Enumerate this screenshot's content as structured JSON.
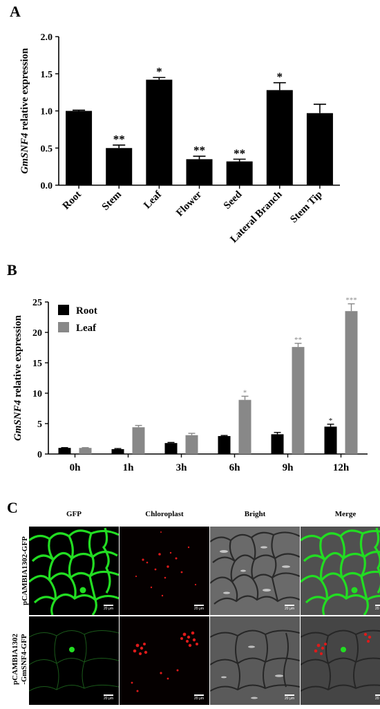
{
  "panels": {
    "a_label": "A",
    "b_label": "B",
    "c_label": "C"
  },
  "chart_data": [
    {
      "type": "bar",
      "panel": "A",
      "categories": [
        "Root",
        "Stem",
        "Leaf",
        "Flower",
        "Seed",
        "Lateral Branch",
        "Stem Tip"
      ],
      "values": [
        1.0,
        0.5,
        1.42,
        0.35,
        0.32,
        1.28,
        0.97
      ],
      "errors": [
        0.01,
        0.04,
        0.03,
        0.04,
        0.03,
        0.1,
        0.12
      ],
      "significance": [
        "",
        "**",
        "*",
        "**",
        "**",
        "*",
        ""
      ],
      "ylabel_gene": "GmSNF4",
      "ylabel_rest": " relative expression",
      "ylim": [
        0,
        2.0
      ],
      "yticks": [
        "0.0",
        "0.5",
        "1.0",
        "1.5",
        "2.0"
      ],
      "bar_color": "#000000"
    },
    {
      "type": "bar",
      "panel": "B",
      "categories": [
        "0h",
        "1h",
        "3h",
        "6h",
        "9h",
        "12h"
      ],
      "series": [
        {
          "name": "Root",
          "values": [
            1.0,
            0.8,
            1.8,
            2.95,
            3.25,
            4.5
          ],
          "errors": [
            0.05,
            0.1,
            0.1,
            0.1,
            0.3,
            0.4
          ],
          "significance": [
            "",
            "",
            "",
            "",
            "",
            "*"
          ],
          "color": "#000000"
        },
        {
          "name": "Leaf",
          "values": [
            1.0,
            4.4,
            3.1,
            8.9,
            17.6,
            23.5
          ],
          "errors": [
            0.05,
            0.3,
            0.3,
            0.6,
            0.6,
            1.2
          ],
          "significance": [
            "",
            "",
            "",
            "*",
            "**",
            "***"
          ],
          "color": "#888888"
        }
      ],
      "ylabel_gene": "GmSNF4",
      "ylabel_rest": " relative expression",
      "ylim": [
        0,
        25
      ],
      "yticks": [
        "0",
        "5",
        "10",
        "15",
        "20",
        "25"
      ],
      "legend_position": "top-left"
    }
  ],
  "microscopy": {
    "columns": [
      "GFP",
      "Chloroplast",
      "Bright",
      "Merge"
    ],
    "rows": [
      {
        "label": "pCAMBIA1302-GFP"
      },
      {
        "label_line1": "pCAMBIA1302",
        "label_line2": "-GmSNF4-GFP"
      }
    ],
    "scale_text": "20 μm",
    "colors": {
      "gfp": "#22dd22",
      "chloroplast": "#dd1a1a",
      "background": "#000000"
    }
  }
}
